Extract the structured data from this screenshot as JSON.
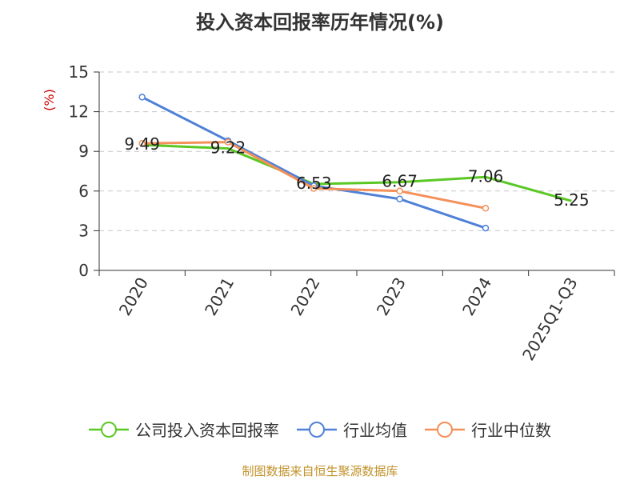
{
  "title": "投入资本回报率历年情况(%)",
  "source_note": "制图数据来自恒生聚源数据库",
  "colors": {
    "company": "#5ac824",
    "industry_avg": "#4f81d8",
    "industry_median": "#f4905a",
    "ylabel": "#cc0000",
    "source": "#c2922c"
  },
  "legend": [
    {
      "label": "公司投入资本回报率",
      "color": "#5ac824"
    },
    {
      "label": "行业均值",
      "color": "#4f81d8"
    },
    {
      "label": "行业中位数",
      "color": "#f4905a"
    }
  ],
  "chart_data": {
    "type": "line",
    "title": "投入资本回报率历年情况(%)",
    "ylabel": "(%)",
    "xlabel": "",
    "categories": [
      "2020",
      "2021",
      "2022",
      "2023",
      "2024",
      "2025Q1-Q3"
    ],
    "ylim": [
      0,
      15
    ],
    "yticks": [
      0,
      3,
      6,
      9,
      12,
      15
    ],
    "grid": true,
    "legend_position": "bottom",
    "series": [
      {
        "name": "公司投入资本回报率",
        "values": [
          9.49,
          9.22,
          6.53,
          6.67,
          7.06,
          5.25
        ],
        "labels": [
          "9.49",
          "9.22",
          "6.53",
          "6.67",
          "7.06",
          "5.25"
        ],
        "markers": false
      },
      {
        "name": "行业均值",
        "values": [
          13.1,
          9.8,
          6.4,
          5.4,
          3.2,
          null
        ],
        "markers": true
      },
      {
        "name": "行业中位数",
        "values": [
          9.6,
          9.7,
          6.2,
          6.0,
          4.7,
          null
        ],
        "markers": true
      }
    ]
  }
}
